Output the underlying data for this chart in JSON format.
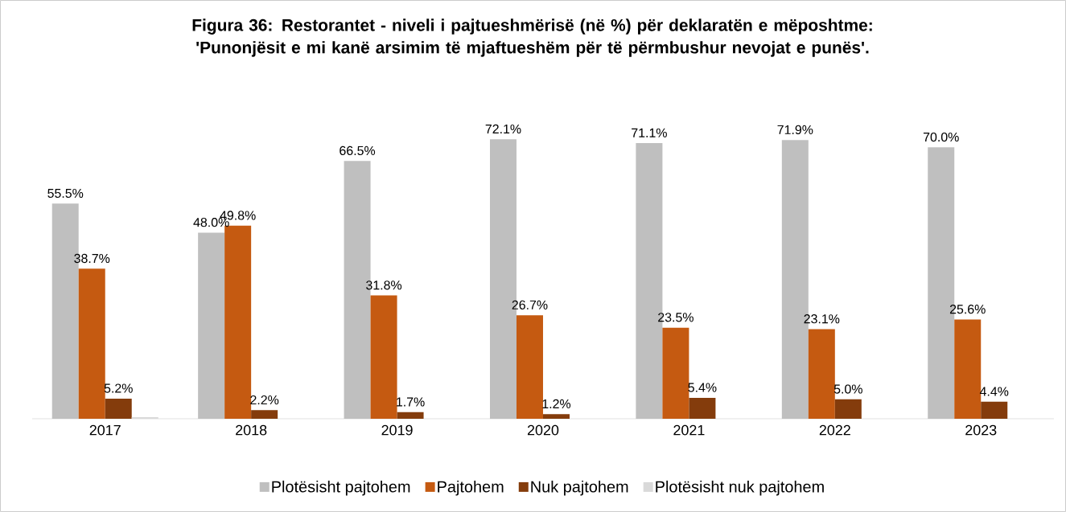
{
  "chart_data": {
    "type": "bar",
    "title": "Figura 36: Restorantet - niveli i pajtueshmërisë (në %) për deklaratën e mëposhtme: 'Punonjësit e mi kanë arsimim të mjaftueshëm për të përmbushur nevojat e punës'.",
    "categories": [
      "2017",
      "2018",
      "2019",
      "2020",
      "2021",
      "2022",
      "2023"
    ],
    "series": [
      {
        "name": "Plotësisht pajtohem",
        "color": "#bfbfbf",
        "values": [
          55.5,
          48.0,
          66.5,
          72.1,
          71.1,
          71.9,
          70.0
        ],
        "value_labels": [
          "55.5%",
          "48.0%",
          "66.5%",
          "72.1%",
          "71.1%",
          "71.9%",
          "70.0%"
        ]
      },
      {
        "name": "Pajtohem",
        "color": "#c55a11",
        "values": [
          38.7,
          49.8,
          31.8,
          26.7,
          23.5,
          23.1,
          25.6
        ],
        "value_labels": [
          "38.7%",
          "49.8%",
          "31.8%",
          "26.7%",
          "23.5%",
          "23.1%",
          "25.6%"
        ]
      },
      {
        "name": "Nuk pajtohem",
        "color": "#843c0c",
        "values": [
          5.2,
          2.2,
          1.7,
          1.2,
          5.4,
          5.0,
          4.4
        ],
        "value_labels": [
          "5.2%",
          "2.2%",
          "1.7%",
          "1.2%",
          "5.4%",
          "5.0%",
          "4.4%"
        ]
      },
      {
        "name": "Plotësisht nuk pajtohem",
        "color": "#d9d9d9",
        "values": [
          0.4,
          null,
          null,
          null,
          null,
          null,
          null
        ],
        "value_labels": [
          null,
          null,
          null,
          null,
          null,
          null,
          null
        ]
      }
    ],
    "legend": "bottom"
  }
}
